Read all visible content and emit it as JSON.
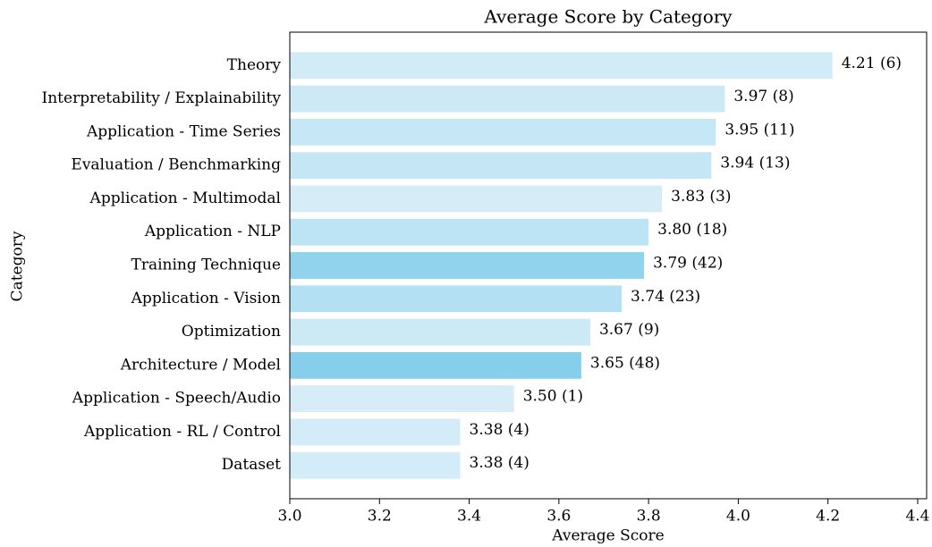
{
  "chart_data": {
    "type": "barh",
    "title": "Average Score by Category",
    "xlabel": "Average Score",
    "ylabel": "Category",
    "categories": [
      "Theory",
      "Interpretability / Explainability",
      "Application - Time Series",
      "Evaluation / Benchmarking",
      "Application - Multimodal",
      "Application - NLP",
      "Training Technique",
      "Application - Vision",
      "Optimization",
      "Architecture / Model",
      "Application - Speech/Audio",
      "Application - RL / Control",
      "Dataset"
    ],
    "values": [
      4.21,
      3.97,
      3.95,
      3.94,
      3.83,
      3.8,
      3.79,
      3.74,
      3.67,
      3.65,
      3.5,
      3.38,
      3.38
    ],
    "value_labels": [
      "4.21 (6)",
      "3.97 (8)",
      "3.95 (11)",
      "3.94 (13)",
      "3.83 (3)",
      "3.80 (18)",
      "3.79 (42)",
      "3.74 (23)",
      "3.67 (9)",
      "3.65 (48)",
      "3.50 (1)",
      "3.38 (4)",
      "3.38 (4)"
    ],
    "colors": [
      "#d1ebf7",
      "#cde9f6",
      "#c6e7f5",
      "#c4e6f5",
      "#d6edf8",
      "#bde4f4",
      "#91d3ec",
      "#b3e0f2",
      "#cce9f6",
      "#87ceeb",
      "#d6edf8",
      "#d4ecf7",
      "#d4ecf7"
    ],
    "xlim": [
      3.0,
      4.42
    ],
    "xticks": [
      {
        "value": 3.0,
        "label": "3.0"
      },
      3.2,
      3.4,
      3.6,
      3.8,
      {
        "value": 4.0,
        "label": "4.0"
      },
      4.2,
      4.4
    ]
  }
}
